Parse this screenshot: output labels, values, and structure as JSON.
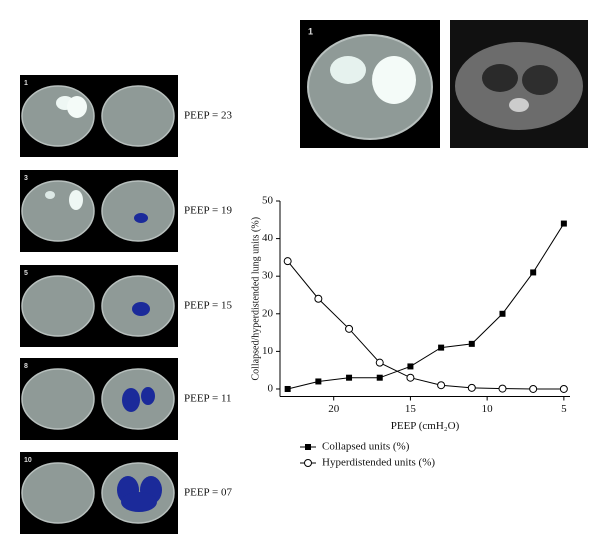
{
  "panels": [
    {
      "index": "1",
      "label": "PEEP = 23"
    },
    {
      "index": "3",
      "label": "PEEP = 19"
    },
    {
      "index": "5",
      "label": "PEEP = 15"
    },
    {
      "index": "8",
      "label": "PEEP = 11"
    },
    {
      "index": "10",
      "label": "PEEP = 07"
    }
  ],
  "top_image": {
    "index": "1"
  },
  "chart_data": {
    "type": "line",
    "x": [
      23,
      21,
      19,
      17,
      15,
      13,
      11,
      9,
      7,
      5
    ],
    "xlim": [
      23.5,
      4.6
    ],
    "xticks": [
      20,
      15,
      10,
      5
    ],
    "ylim": [
      -2,
      50
    ],
    "yticks": [
      0,
      10,
      20,
      30,
      40,
      50
    ],
    "xlabel": "PEEP (cmH₂O)",
    "ylabel": "Collapsed/hyperdistended lung units (%)",
    "series": [
      {
        "name": "Collapsed units (%)",
        "color": "#000000",
        "marker": "square",
        "values": [
          0,
          2,
          3,
          3,
          6,
          11,
          12,
          20,
          31,
          44
        ]
      },
      {
        "name": "Hyperdistended units (%)",
        "color": "#000000",
        "marker": "circle",
        "values": [
          34,
          24,
          16,
          7,
          3,
          1,
          0.3,
          0.1,
          0,
          0
        ]
      }
    ]
  }
}
